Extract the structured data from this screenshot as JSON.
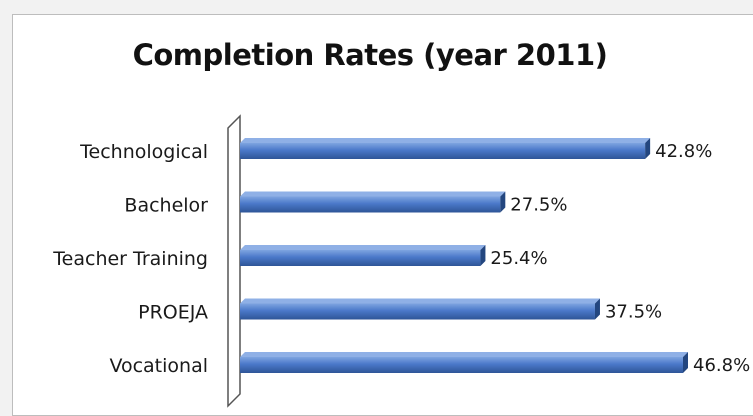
{
  "chart_data": {
    "type": "bar",
    "orientation": "horizontal",
    "title": "Completion Rates (year 2011)",
    "categories": [
      "Technological",
      "Bachelor",
      "Teacher Training",
      "PROEJA",
      "Vocational"
    ],
    "values": [
      42.8,
      27.5,
      25.4,
      37.5,
      46.8
    ],
    "value_labels": [
      "42.8%",
      "27.5%",
      "25.4%",
      "37.5%",
      "46.8%"
    ],
    "xlabel": "",
    "ylabel": "",
    "xlim": [
      0,
      46.8
    ],
    "grid": false,
    "legend": "none",
    "bar_color": "#4472c4",
    "bar_style": "3d"
  }
}
